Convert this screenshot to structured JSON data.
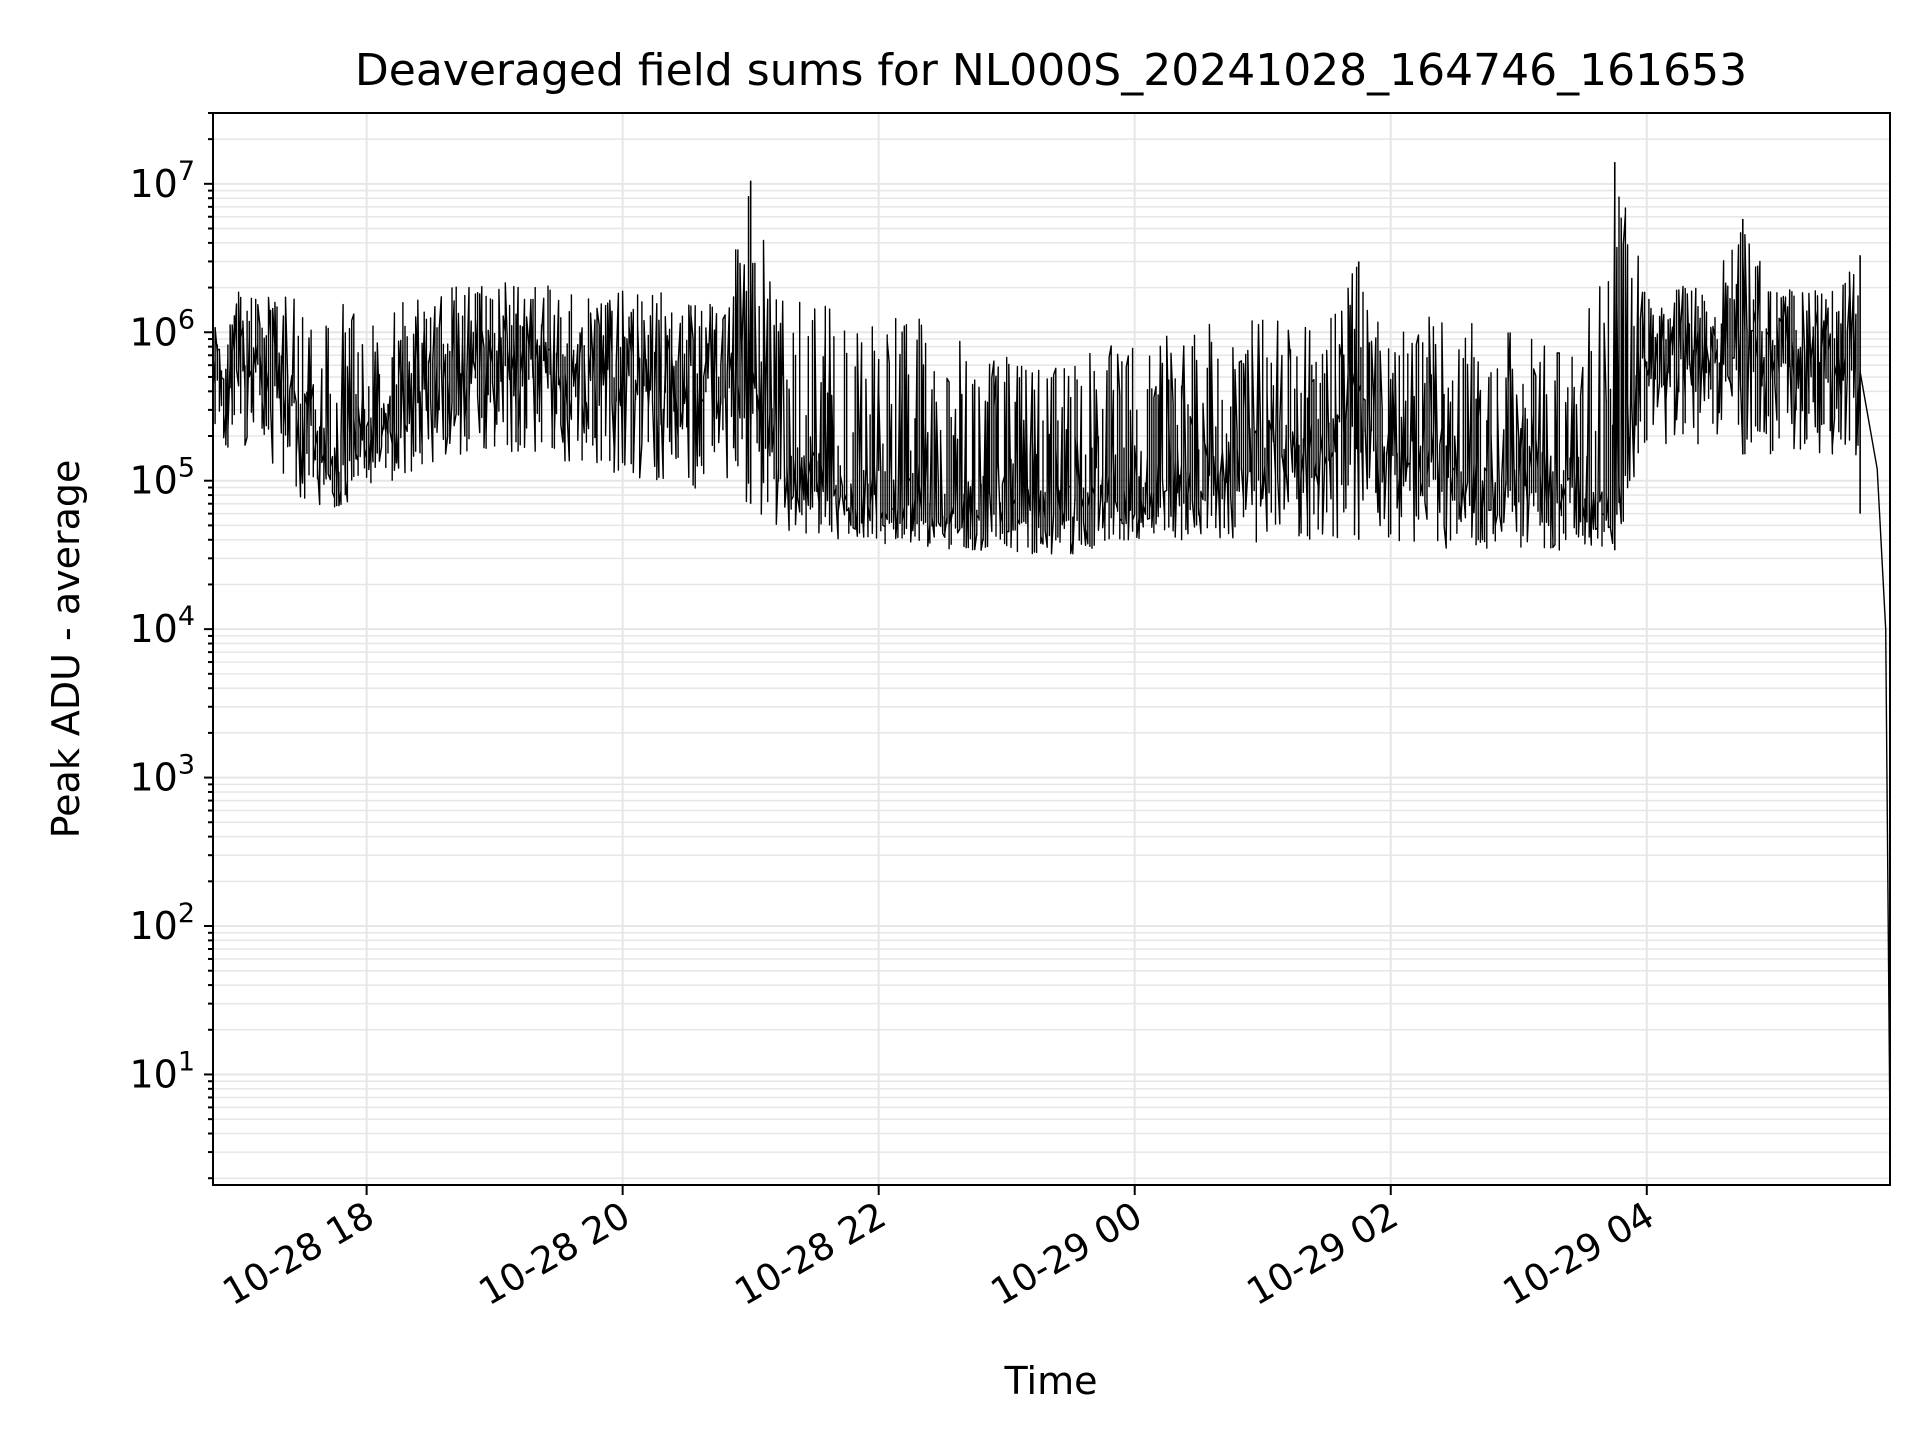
{
  "chart_data": {
    "type": "line",
    "title": "Deaveraged field sums for NL000S_20241028_164746_161653",
    "xlabel": "Time",
    "ylabel": "Peak ADU - average",
    "yscale": "log",
    "xlim": [
      "2024-10-28 16:48",
      "2024-10-29 05:54"
    ],
    "ylim": [
      1.8,
      30000000
    ],
    "x_ticks": [
      "10-28 18",
      "10-28 20",
      "10-28 22",
      "10-29 00",
      "10-29 02",
      "10-29 04"
    ],
    "y_ticks": [
      {
        "base": "10",
        "exp": "1"
      },
      {
        "base": "10",
        "exp": "2"
      },
      {
        "base": "10",
        "exp": "3"
      },
      {
        "base": "10",
        "exp": "4"
      },
      {
        "base": "10",
        "exp": "5"
      },
      {
        "base": "10",
        "exp": "6"
      },
      {
        "base": "10",
        "exp": "7"
      }
    ],
    "grid": true,
    "line_color": "#000000",
    "grid_color": "#e6e6e6",
    "series": [
      {
        "x": [
          "2024-10-28 16:48",
          "2024-10-28 17:00",
          "2024-10-28 17:15",
          "2024-10-28 17:30",
          "2024-10-28 17:45",
          "2024-10-28 18:00",
          "2024-10-28 18:15",
          "2024-10-28 18:30",
          "2024-10-28 18:45",
          "2024-10-28 19:00",
          "2024-10-28 19:15",
          "2024-10-28 19:30",
          "2024-10-28 19:45",
          "2024-10-28 20:00",
          "2024-10-28 20:15",
          "2024-10-28 20:30",
          "2024-10-28 20:45",
          "2024-10-28 21:00",
          "2024-10-28 21:15",
          "2024-10-28 21:30",
          "2024-10-28 21:45",
          "2024-10-28 22:00",
          "2024-10-28 22:15",
          "2024-10-28 22:30",
          "2024-10-28 22:45",
          "2024-10-28 23:00",
          "2024-10-28 23:15",
          "2024-10-28 23:30",
          "2024-10-28 23:45",
          "2024-10-29 00:00",
          "2024-10-29 00:15",
          "2024-10-29 00:30",
          "2024-10-29 00:45",
          "2024-10-29 01:00",
          "2024-10-29 01:15",
          "2024-10-29 01:30",
          "2024-10-29 01:45",
          "2024-10-29 02:00",
          "2024-10-29 02:15",
          "2024-10-29 02:30",
          "2024-10-29 02:45",
          "2024-10-29 03:00",
          "2024-10-29 03:15",
          "2024-10-29 03:30",
          "2024-10-29 03:45",
          "2024-10-29 04:00",
          "2024-10-29 04:15",
          "2024-10-29 04:30",
          "2024-10-29 04:45",
          "2024-10-29 05:00",
          "2024-10-29 05:15",
          "2024-10-29 05:30",
          "2024-10-29 05:40",
          "2024-10-29 05:48",
          "2024-10-29 05:52",
          "2024-10-29 05:54"
        ],
        "low": [
          200000,
          150000,
          120000,
          70000,
          65000,
          80000,
          100000,
          130000,
          140000,
          150000,
          160000,
          140000,
          120000,
          110000,
          100000,
          90000,
          80000,
          70000,
          45000,
          42000,
          40000,
          38000,
          35000,
          35000,
          34000,
          33000,
          32000,
          31000,
          35000,
          40000,
          40000,
          40000,
          38000,
          38000,
          40000,
          40000,
          40000,
          38000,
          35000,
          35000,
          35000,
          34000,
          33000,
          33000,
          34000,
          180000,
          170000,
          160000,
          150000,
          150000,
          150000,
          150000,
          60000,
          15000,
          4000,
          3.8
        ],
        "high": [
          1200000,
          2000000,
          1800000,
          1700000,
          1600000,
          1700000,
          1800000,
          2000000,
          2100000,
          2300000,
          2200000,
          2000000,
          2000000,
          1900000,
          1900000,
          1800000,
          1800000,
          10500000,
          1800000,
          1600000,
          1500000,
          1400000,
          1400000,
          1000000,
          800000,
          700000,
          600000,
          700000,
          800000,
          900000,
          1000000,
          1100000,
          1200000,
          1300000,
          1300000,
          1300000,
          3000000,
          1400000,
          1300000,
          1200000,
          1100000,
          1000000,
          900000,
          800000,
          14000000,
          2200000,
          2100000,
          2000000,
          5800000,
          2000000,
          1900000,
          2000000,
          3300000,
          200000,
          20000,
          4
        ],
        "mid": [
          500000,
          700000,
          600000,
          250000,
          120000,
          200000,
          300000,
          500000,
          600000,
          700000,
          650000,
          600000,
          550000,
          500000,
          480000,
          450000,
          430000,
          400000,
          120000,
          100000,
          90000,
          80000,
          75000,
          70000,
          65000,
          60000,
          60000,
          65000,
          70000,
          80000,
          90000,
          100000,
          120000,
          150000,
          160000,
          160000,
          400000,
          150000,
          120000,
          110000,
          100000,
          90000,
          80000,
          75000,
          70000,
          600000,
          650000,
          700000,
          700000,
          650000,
          650000,
          700000,
          900000,
          120000,
          10000,
          4
        ]
      }
    ]
  }
}
